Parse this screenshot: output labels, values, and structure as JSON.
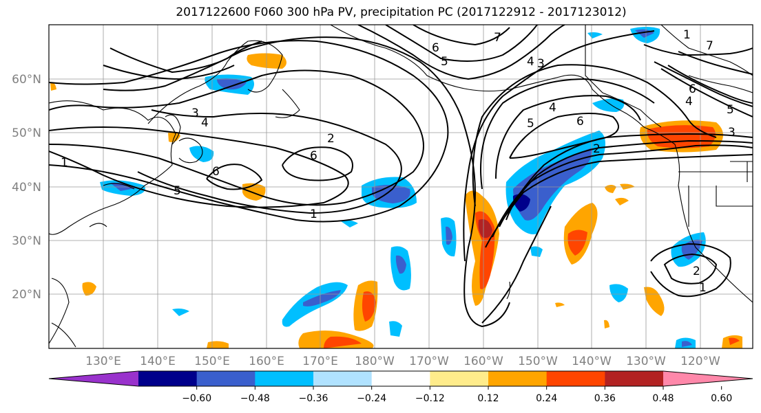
{
  "title": "2017122600 F060 300 hPa PV, precipitation PC (2017122912 - 2017123012)",
  "lat_labels": [
    "60°N",
    "50°N",
    "40°N",
    "30°N",
    "20°N"
  ],
  "lon_labels": [
    "130°E",
    "140°E",
    "150°E",
    "160°E",
    "170°E",
    "180°W",
    "170°W",
    "160°W",
    "150°W",
    "140°W",
    "130°W",
    "120°W"
  ],
  "colorbar": {
    "colors": [
      "#9932cc",
      "#00008b",
      "#3a5fcd",
      "#00bfff",
      "#b0e2ff",
      "#ffffff",
      "#ffec8b",
      "#ffa500",
      "#ff4500",
      "#b22222",
      "#ff88aa"
    ],
    "ticks": [
      "−0.60",
      "−0.48",
      "−0.36",
      "−0.24",
      "−0.12",
      "0.12",
      "0.24",
      "0.36",
      "0.48",
      "0.60"
    ]
  },
  "contour_labels": [
    "7",
    "6",
    "5",
    "4",
    "3",
    "3",
    "4",
    "2",
    "6",
    "1",
    "5",
    "6",
    "1",
    "4",
    "5",
    "6",
    "2",
    "7",
    "6",
    "4",
    "5",
    "3",
    "1",
    "2",
    "1"
  ]
}
